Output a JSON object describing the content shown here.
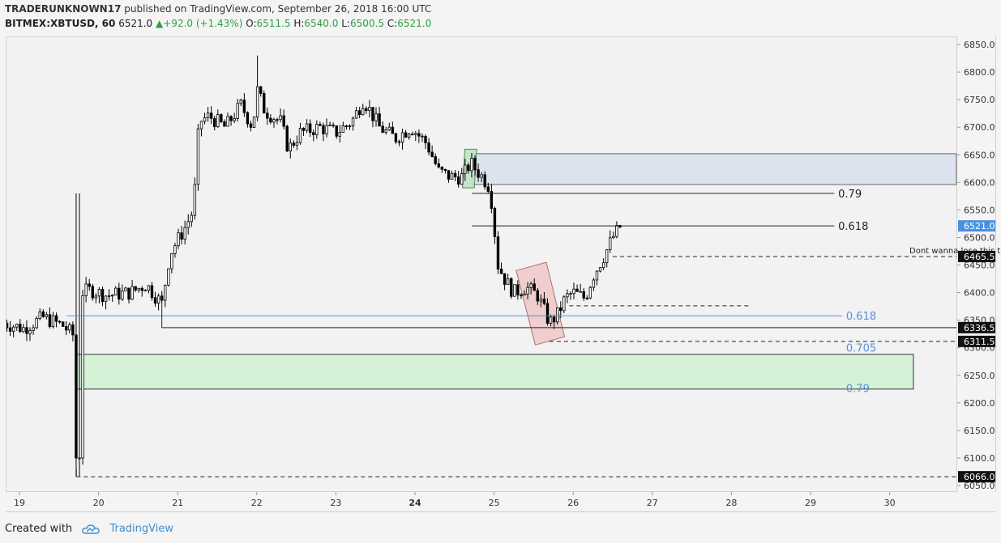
{
  "header": {
    "author": "TRADERUNKNOWN17",
    "published": "published on TradingView.com, September 26, 2018 16:00 UTC",
    "symbol": "BITMEX:XBTUSD, 60",
    "last": "6521.0",
    "change_arrow": "▲",
    "change": "+92.0 (+1.43%)",
    "o_label": "O:",
    "o": "6511.5",
    "h_label": "H:",
    "h": "6540.0",
    "l_label": "L:",
    "l": "6500.5",
    "c_label": "C:",
    "c": "6521.0"
  },
  "footer": {
    "created_with": "Created with",
    "brand": "TradingView",
    "brand_icon": "tradingview-cloud-icon"
  },
  "colors": {
    "bull": "#ffffff",
    "bear": "#000000",
    "wick": "#000000",
    "blue_zone": "#dde3ee",
    "green_zone": "#d6f2d6",
    "green_zone_border": "#333333",
    "fib_blue": "#5b8fd6",
    "red_box": "#f0c8c8",
    "green_box": "#bfe3c2"
  },
  "chart_data": {
    "type": "candlestick",
    "timeframe": "60",
    "ylim": [
      6040,
      6860
    ],
    "x_day_range": [
      18.8,
      31.8
    ],
    "y_ticks": [
      "6850.0",
      "6800.0",
      "6750.0",
      "6700.0",
      "6650.0",
      "6600.0",
      "6550.0",
      "6500.0",
      "6450.0",
      "6400.0",
      "6350.0",
      "6300.0",
      "6250.0",
      "6200.0",
      "6150.0",
      "6100.0",
      "6050.0"
    ],
    "x_ticks": [
      {
        "day": 19,
        "label": "19",
        "bold": false
      },
      {
        "day": 20,
        "label": "20",
        "bold": false
      },
      {
        "day": 21,
        "label": "21",
        "bold": false
      },
      {
        "day": 22,
        "label": "22",
        "bold": false
      },
      {
        "day": 23,
        "label": "23",
        "bold": false
      },
      {
        "day": 24,
        "label": "24",
        "bold": true
      },
      {
        "day": 25,
        "label": "25",
        "bold": false
      },
      {
        "day": 26,
        "label": "26",
        "bold": false
      },
      {
        "day": 27,
        "label": "27",
        "bold": false
      },
      {
        "day": 28,
        "label": "28",
        "bold": false
      },
      {
        "day": 29,
        "label": "29",
        "bold": false
      },
      {
        "day": 30,
        "label": "30",
        "bold": false
      }
    ],
    "price_tags": [
      {
        "price": 6521.0,
        "label": "6521.0",
        "style": "blue"
      },
      {
        "price": 6465.5,
        "label": "6465.5",
        "style": "dark"
      },
      {
        "price": 6336.5,
        "label": "6336.5",
        "style": "dark"
      },
      {
        "price": 6311.5,
        "label": "6311.5",
        "style": "dark"
      },
      {
        "price": 6066.0,
        "label": "6066.0",
        "style": "dark"
      }
    ],
    "anchors": [
      [
        18.8,
        6345
      ],
      [
        19.05,
        6335
      ],
      [
        19.3,
        6355
      ],
      [
        19.55,
        6340
      ],
      [
        19.7,
        6320
      ],
      [
        19.74,
        6140
      ],
      [
        19.78,
        6400
      ],
      [
        19.9,
        6405
      ],
      [
        20.1,
        6395
      ],
      [
        20.4,
        6400
      ],
      [
        20.6,
        6415
      ],
      [
        20.8,
        6380
      ],
      [
        20.9,
        6470
      ],
      [
        21.1,
        6520
      ],
      [
        21.2,
        6550
      ],
      [
        21.27,
        6710
      ],
      [
        21.4,
        6720
      ],
      [
        21.6,
        6700
      ],
      [
        21.8,
        6740
      ],
      [
        21.95,
        6700
      ],
      [
        22.0,
        6770
      ],
      [
        22.1,
        6730
      ],
      [
        22.3,
        6710
      ],
      [
        22.4,
        6660
      ],
      [
        22.55,
        6690
      ],
      [
        22.8,
        6700
      ],
      [
        23.0,
        6690
      ],
      [
        23.2,
        6710
      ],
      [
        23.35,
        6750
      ],
      [
        23.55,
        6700
      ],
      [
        23.75,
        6680
      ],
      [
        23.95,
        6700
      ],
      [
        24.15,
        6670
      ],
      [
        24.3,
        6620
      ],
      [
        24.45,
        6610
      ],
      [
        24.6,
        6610
      ],
      [
        24.7,
        6635
      ],
      [
        24.85,
        6610
      ],
      [
        24.95,
        6590
      ],
      [
        25.0,
        6520
      ],
      [
        25.05,
        6450
      ],
      [
        25.15,
        6420
      ],
      [
        25.25,
        6400
      ],
      [
        25.4,
        6410
      ],
      [
        25.55,
        6395
      ],
      [
        25.7,
        6345
      ],
      [
        25.8,
        6360
      ],
      [
        25.9,
        6390
      ],
      [
        26.0,
        6400
      ],
      [
        26.15,
        6390
      ],
      [
        26.25,
        6430
      ],
      [
        26.4,
        6470
      ],
      [
        26.5,
        6500
      ],
      [
        26.6,
        6521
      ]
    ],
    "annotations": [
      {
        "type": "rect",
        "label": "",
        "p1": 6652,
        "p2": 6596,
        "d1": 24.72,
        "d2": 31.7,
        "style": "blue_zone"
      },
      {
        "type": "rect",
        "label": "",
        "p1": 6288,
        "p2": 6225,
        "d1": 19.72,
        "d2": 30.3,
        "style": "green_zone"
      },
      {
        "type": "hline",
        "label": "0.79",
        "price": 6580,
        "d1": 24.72,
        "d2": 29.3,
        "style": "solid_dark",
        "label_day": 29.35
      },
      {
        "type": "hline",
        "label": "0.618",
        "price": 6521,
        "d1": 24.72,
        "d2": 29.3,
        "style": "solid_dark",
        "label_day": 29.35
      },
      {
        "type": "hline",
        "label": "Dont wanna lose this to progress higher",
        "price": 6465.5,
        "d1": 26.5,
        "d2": 31.7,
        "style": "dashed_dark",
        "label_day": 30.25
      },
      {
        "type": "hline",
        "label": "",
        "price": 6376,
        "d1": 25.95,
        "d2": 28.25,
        "style": "dashed_dark"
      },
      {
        "type": "hline",
        "label": "0.618",
        "price": 6358,
        "d1": 19.6,
        "d2": 29.4,
        "style": "solid_blue",
        "label_day": 29.45
      },
      {
        "type": "hline",
        "label": "",
        "price": 6336.5,
        "d1": 20.8,
        "d2": 31.7,
        "style": "solid_dark"
      },
      {
        "type": "hline",
        "label": "",
        "price": 6311.5,
        "d1": 25.7,
        "d2": 31.7,
        "style": "dashed_dark"
      },
      {
        "type": "hline",
        "label": "",
        "price": 6066,
        "d1": 19.72,
        "d2": 31.7,
        "style": "dashed_dark"
      },
      {
        "type": "text",
        "label": "0.705",
        "price": 6300,
        "day": 29.45,
        "style": "blue_text"
      },
      {
        "type": "text",
        "label": "0.79",
        "price": 6227,
        "day": 29.45,
        "style": "blue_text"
      },
      {
        "type": "poly",
        "label": "",
        "points": [
          [
            25.28,
            6440
          ],
          [
            25.66,
            6455
          ],
          [
            25.89,
            6320
          ],
          [
            25.52,
            6305
          ]
        ],
        "style": "red_box"
      },
      {
        "type": "poly",
        "label": "",
        "points": [
          [
            24.63,
            6660
          ],
          [
            24.78,
            6660
          ],
          [
            24.75,
            6590
          ],
          [
            24.6,
            6590
          ]
        ],
        "style": "green_box"
      },
      {
        "type": "vline",
        "label": "",
        "day": 20.8,
        "p1": 6336.5,
        "p2": 6400,
        "style": "solid_dark"
      },
      {
        "type": "vline",
        "label": "",
        "day": 19.72,
        "p1": 6066,
        "p2": 6080,
        "style": "solid_dark"
      }
    ]
  }
}
